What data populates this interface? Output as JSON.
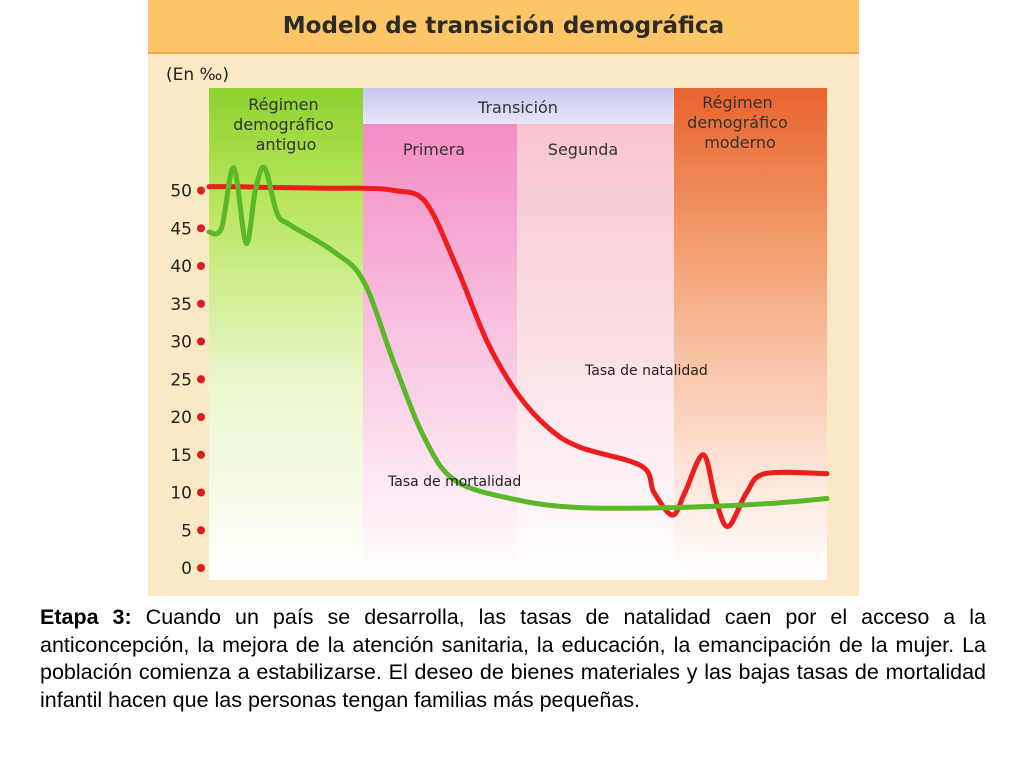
{
  "chart_data": {
    "type": "line",
    "title": "Modelo de transición demográfica",
    "ylabel": "(En ‰)",
    "ylim": [
      0,
      55
    ],
    "yticks": [
      0,
      5,
      10,
      15,
      20,
      25,
      30,
      35,
      40,
      45,
      50
    ],
    "phases": [
      {
        "name": "Régimen demográfico antiguo",
        "lines": [
          "Régimen",
          "demográfico",
          "antiguo"
        ],
        "color": "#8cd12e"
      },
      {
        "name": "Transición",
        "lines": [
          "Transición"
        ],
        "color": "#c8c8ee",
        "subphases": [
          {
            "name": "Primera",
            "color": "#f38bc4"
          },
          {
            "name": "Segunda",
            "color": "#f7c4d0"
          }
        ]
      },
      {
        "name": "Régimen demográfico moderno",
        "lines": [
          "Régimen",
          "demográfico",
          "moderno"
        ],
        "color": "#e8622e"
      }
    ],
    "series": [
      {
        "name": "Tasa de natalidad",
        "color": "#ee1c1c",
        "points": [
          [
            0,
            50.5
          ],
          [
            5,
            50.5
          ],
          [
            10,
            50.4
          ],
          [
            20,
            50.3
          ],
          [
            25,
            50.3
          ],
          [
            30,
            50
          ],
          [
            35,
            48.5
          ],
          [
            40,
            40
          ],
          [
            45,
            30
          ],
          [
            50,
            23
          ],
          [
            55,
            18.5
          ],
          [
            60,
            16
          ],
          [
            70,
            13.5
          ],
          [
            72,
            10
          ],
          [
            75,
            7
          ],
          [
            77,
            10
          ],
          [
            80,
            15
          ],
          [
            82,
            9
          ],
          [
            84,
            5.5
          ],
          [
            87,
            10
          ],
          [
            90,
            12.5
          ],
          [
            100,
            12.5
          ]
        ]
      },
      {
        "name": "Tasa de mortalidad",
        "color": "#5ab829",
        "points": [
          [
            0,
            44.5
          ],
          [
            2,
            45
          ],
          [
            4,
            53
          ],
          [
            6,
            43
          ],
          [
            7.5,
            50
          ],
          [
            9,
            53
          ],
          [
            11,
            47
          ],
          [
            13,
            45.5
          ],
          [
            20,
            42
          ],
          [
            25,
            38
          ],
          [
            30,
            27
          ],
          [
            35,
            17
          ],
          [
            40,
            11.5
          ],
          [
            50,
            9
          ],
          [
            60,
            8
          ],
          [
            75,
            8
          ],
          [
            90,
            8.5
          ],
          [
            100,
            9.2
          ]
        ]
      }
    ]
  },
  "caption": {
    "label": "Etapa 3:",
    "text": " Cuando un país se desarrolla, las tasas de natalidad caen por el acceso a la anticoncepción, la mejora de la atención sanitaria, la educación, la emancipación de la mujer. La población comienza a estabilizarse. El deseo de bienes materiales y las bajas tasas de mortalidad infantil hacen que las personas tengan familias más pequeñas."
  }
}
